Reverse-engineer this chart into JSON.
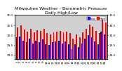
{
  "title": "Milwaukee Weather - Barometric Pressure",
  "subtitle": "Daily High/Low",
  "ylim": [
    28.8,
    31.0
  ],
  "yticks": [
    29.0,
    29.5,
    30.0,
    30.5,
    31.0
  ],
  "high_color": "#FF0000",
  "low_color": "#0000FF",
  "background_color": "#FFFFFF",
  "plot_bg_color": "#D0D0D0",
  "legend_high": "High",
  "legend_low": "Low",
  "high_values": [
    30.38,
    30.48,
    30.28,
    30.18,
    30.32,
    30.12,
    30.25,
    30.2,
    30.32,
    30.08,
    30.02,
    30.12,
    30.18,
    30.22,
    30.12,
    30.18,
    30.08,
    29.82,
    30.02,
    29.88,
    30.12,
    30.32,
    30.52,
    30.42,
    30.22,
    30.08,
    30.78,
    30.62
  ],
  "low_values": [
    29.88,
    29.92,
    29.72,
    29.62,
    29.82,
    29.58,
    29.72,
    29.62,
    29.78,
    29.52,
    29.48,
    29.62,
    29.68,
    29.72,
    29.58,
    29.68,
    29.52,
    29.28,
    29.52,
    29.38,
    29.58,
    29.82,
    29.98,
    29.88,
    29.68,
    29.52,
    30.18,
    30.02
  ],
  "xlabels": [
    "1",
    "2",
    "3",
    "4",
    "5",
    "6",
    "7",
    "8",
    "9",
    "10",
    "11",
    "12",
    "13",
    "14",
    "15",
    "16",
    "17",
    "18",
    "19",
    "20",
    "21",
    "22",
    "23",
    "24",
    "25",
    "26",
    "27",
    "28"
  ],
  "title_fontsize": 4.5,
  "tick_fontsize": 3.0,
  "bar_width": 0.4
}
